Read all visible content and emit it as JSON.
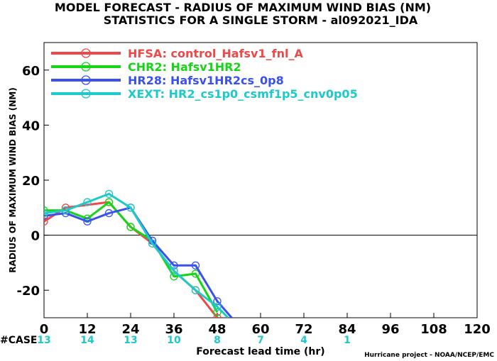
{
  "chart_data": {
    "type": "line",
    "title": "MODEL FORECAST - RADIUS OF MAXIMUM WIND BIAS (NM)",
    "subtitle": "STATISTICS FOR A SINGLE STORM - al092021_IDA",
    "xlabel": "Forecast lead time (hr)",
    "ylabel": "RADIUS OF MAXIMUM WIND BIAS (NM)",
    "xlim": [
      0,
      120
    ],
    "ylim": [
      -30,
      70
    ],
    "x_ticks": [
      "0",
      "12",
      "24",
      "36",
      "48",
      "60",
      "72",
      "84",
      "96",
      "108",
      "120"
    ],
    "y_ticks": [
      "-20",
      "0",
      "20",
      "40",
      "60"
    ],
    "grid": false,
    "zero_line": true,
    "legend_position": "top-left",
    "series": [
      {
        "name": "HFSA: control_Hafsv1_fnl_A",
        "color": "#f04848",
        "x": [
          0,
          6,
          18,
          24,
          30,
          36,
          42,
          48
        ],
        "y": [
          5,
          10,
          12,
          3,
          -3,
          -13,
          -20,
          -30
        ]
      },
      {
        "name": "CHR2: Hafsv1HR2",
        "color": "#16d416",
        "x": [
          0,
          6,
          12,
          18,
          24,
          30,
          36,
          42,
          48
        ],
        "y": [
          9,
          9,
          6,
          12,
          3,
          -2,
          -15,
          -14,
          -28
        ]
      },
      {
        "name": "HR28: Hafsv1HR2cs_0p8",
        "color": "#3a50f0",
        "x": [
          0,
          6,
          12,
          18,
          24,
          30,
          36,
          42,
          48,
          52
        ],
        "y": [
          7,
          8,
          5,
          8,
          10,
          -2,
          -11,
          -11,
          -24,
          -30
        ]
      },
      {
        "name": "XEXT: HR2_cs1p0_csmf1p5_cnv0p05",
        "color": "#1ec9c9",
        "x": [
          0,
          6,
          12,
          18,
          24,
          30,
          36,
          42,
          48,
          51
        ],
        "y": [
          8,
          9,
          12,
          15,
          10,
          -3,
          -13,
          -20,
          -26,
          -30
        ]
      }
    ],
    "case_label": "#CASE",
    "case_color": "#1ec9c9",
    "case_counts": [
      {
        "x": 0,
        "n": "13"
      },
      {
        "x": 12,
        "n": "14"
      },
      {
        "x": 24,
        "n": "13"
      },
      {
        "x": 36,
        "n": "10"
      },
      {
        "x": 48,
        "n": "8"
      },
      {
        "x": 60,
        "n": "7"
      },
      {
        "x": 72,
        "n": "4"
      },
      {
        "x": 84,
        "n": "1"
      }
    ],
    "credit": "Hurricane project - NOAA/NCEP/EMC"
  }
}
